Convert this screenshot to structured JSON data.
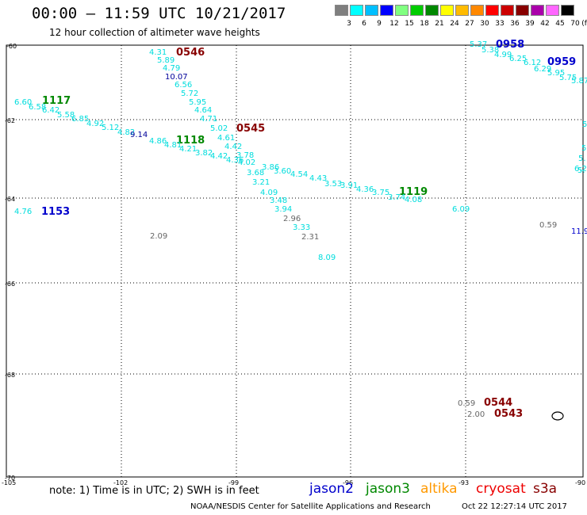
{
  "header": {
    "title": "00:00 – 11:59 UTC 10/21/2017",
    "subtitle": "12 hour collection of altimeter wave heights"
  },
  "color_scale": {
    "values": [
      "3",
      "6",
      "9",
      "12",
      "15",
      "18",
      "21",
      "24",
      "27",
      "30",
      "33",
      "36",
      "39",
      "42",
      "45",
      "70"
    ],
    "unit": "(ft)",
    "colors": [
      "#7f7f7f",
      "#00ffff",
      "#00bfff",
      "#0000ff",
      "#80ff80",
      "#00cc00",
      "#008800",
      "#ffff00",
      "#ffbb00",
      "#ff8800",
      "#ff0000",
      "#cc0000",
      "#880000",
      "#aa00aa",
      "#ff66ff",
      "#000000"
    ]
  },
  "axes": {
    "lat_labels": [
      "-60",
      "-62",
      "-64",
      "-66",
      "-68",
      "-70"
    ],
    "lon_labels": [
      "-105",
      "-102",
      "-99",
      "-96",
      "-93",
      "-90"
    ]
  },
  "pass_times": [
    {
      "text": "0546",
      "color": "#880000"
    },
    {
      "text": "1117",
      "color": "#008800"
    },
    {
      "text": "0545",
      "color": "#880000"
    },
    {
      "text": "1118",
      "color": "#008800"
    },
    {
      "text": "0958",
      "color": "#0000cc"
    },
    {
      "text": "0959",
      "color": "#0000cc"
    },
    {
      "text": "1119",
      "color": "#008800"
    },
    {
      "text": "1153",
      "color": "#0000cc"
    },
    {
      "text": "0544",
      "color": "#880000"
    },
    {
      "text": "0543",
      "color": "#880000"
    }
  ],
  "wave_heights": [
    {
      "v": "4.31",
      "c": "#00dddd"
    },
    {
      "v": "5.89",
      "c": "#00dddd"
    },
    {
      "v": "4.79",
      "c": "#00dddd"
    },
    {
      "v": "10.07",
      "c": "#000099"
    },
    {
      "v": "6.56",
      "c": "#00dddd"
    },
    {
      "v": "5.72",
      "c": "#00dddd"
    },
    {
      "v": "5.95",
      "c": "#00dddd"
    },
    {
      "v": "4.64",
      "c": "#00dddd"
    },
    {
      "v": "4.71",
      "c": "#00dddd"
    },
    {
      "v": "5.02",
      "c": "#00dddd"
    },
    {
      "v": "4.61",
      "c": "#00dddd"
    },
    {
      "v": "4.42",
      "c": "#00dddd"
    },
    {
      "v": "3.78",
      "c": "#00dddd"
    },
    {
      "v": "6.60",
      "c": "#00dddd"
    },
    {
      "v": "6.58",
      "c": "#00dddd"
    },
    {
      "v": "6.42",
      "c": "#00dddd"
    },
    {
      "v": "5.58",
      "c": "#00dddd"
    },
    {
      "v": "6.85",
      "c": "#00dddd"
    },
    {
      "v": "4.92",
      "c": "#00dddd"
    },
    {
      "v": "5.12",
      "c": "#00dddd"
    },
    {
      "v": "4.82",
      "c": "#00dddd"
    },
    {
      "v": "9.14",
      "c": "#000099"
    },
    {
      "v": "4.86",
      "c": "#00dddd"
    },
    {
      "v": "4.81",
      "c": "#00dddd"
    },
    {
      "v": "4.21",
      "c": "#00dddd"
    },
    {
      "v": "3.82",
      "c": "#00dddd"
    },
    {
      "v": "4.42",
      "c": "#00dddd"
    },
    {
      "v": "4.36",
      "c": "#00dddd"
    },
    {
      "v": "4.02",
      "c": "#00dddd"
    },
    {
      "v": "3.86",
      "c": "#00dddd"
    },
    {
      "v": "3.68",
      "c": "#00dddd"
    },
    {
      "v": "3.60",
      "c": "#00dddd"
    },
    {
      "v": "4.54",
      "c": "#00dddd"
    },
    {
      "v": "4.43",
      "c": "#00dddd"
    },
    {
      "v": "3.53",
      "c": "#00dddd"
    },
    {
      "v": "3.91",
      "c": "#00dddd"
    },
    {
      "v": "4.36",
      "c": "#00dddd"
    },
    {
      "v": "3.75",
      "c": "#00dddd"
    },
    {
      "v": "3.74",
      "c": "#00dddd"
    },
    {
      "v": "4.08",
      "c": "#00dddd"
    },
    {
      "v": "3.21",
      "c": "#00dddd"
    },
    {
      "v": "4.09",
      "c": "#00dddd"
    },
    {
      "v": "3.48",
      "c": "#00dddd"
    },
    {
      "v": "3.94",
      "c": "#00dddd"
    },
    {
      "v": "2.96",
      "c": "#666666"
    },
    {
      "v": "3.33",
      "c": "#00dddd"
    },
    {
      "v": "2.31",
      "c": "#666666"
    },
    {
      "v": "8.09",
      "c": "#00dddd"
    },
    {
      "v": "4.76",
      "c": "#00dddd"
    },
    {
      "v": "2.09",
      "c": "#666666"
    },
    {
      "v": "6.09",
      "c": "#00dddd"
    },
    {
      "v": "0.59",
      "c": "#666666"
    },
    {
      "v": "11.9",
      "c": "#0000cc"
    },
    {
      "v": "5.37",
      "c": "#00dddd"
    },
    {
      "v": "5.38",
      "c": "#00dddd"
    },
    {
      "v": "4.99",
      "c": "#00dddd"
    },
    {
      "v": "6.25",
      "c": "#00dddd"
    },
    {
      "v": "6.12",
      "c": "#00dddd"
    },
    {
      "v": "6.29",
      "c": "#00dddd"
    },
    {
      "v": "5.95",
      "c": "#00dddd"
    },
    {
      "v": "5.75",
      "c": "#00dddd"
    },
    {
      "v": "5.87",
      "c": "#00dddd"
    },
    {
      "v": "5",
      "c": "#00dddd"
    },
    {
      "v": "5",
      "c": "#00dddd"
    },
    {
      "v": "5.",
      "c": "#00dddd"
    },
    {
      "v": "5.",
      "c": "#00dddd"
    },
    {
      "v": "6.2",
      "c": "#00dddd"
    },
    {
      "v": "0.59",
      "c": "#666666"
    },
    {
      "v": "2.00",
      "c": "#666666"
    }
  ],
  "footer": {
    "note": "note: 1) Time is in UTC; 2) SWH is in feet",
    "missions": [
      {
        "name": "jason2",
        "color": "#0000cc"
      },
      {
        "name": "jason3",
        "color": "#008800"
      },
      {
        "name": "altika",
        "color": "#ff9900"
      },
      {
        "name": "cryosat",
        "color": "#ee0000"
      },
      {
        "name": "s3a",
        "color": "#880000"
      }
    ],
    "credit": "NOAA/NESDIS Center for Satellite Applications and Research",
    "timestamp": "Oct 22 12:27:14 UTC 2017"
  }
}
